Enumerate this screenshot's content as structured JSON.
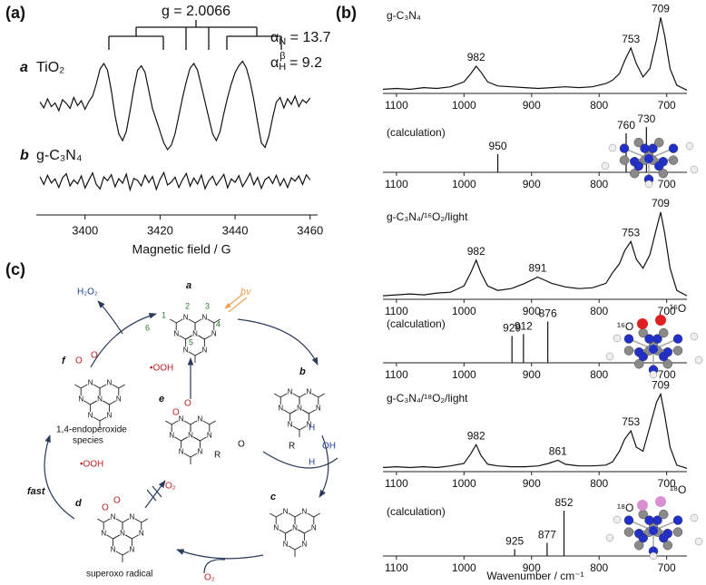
{
  "panel_labels": [
    "(a)",
    "(b)",
    "(c)"
  ],
  "chart_data": [
    {
      "type": "line",
      "annotations": {
        "g": "g = 2.0066",
        "splitting_n": {
          "symbol": "α",
          "sub": "N",
          "text": " = 13.7"
        },
        "splitting_h": {
          "symbol": "α",
          "sub": "H",
          "sup": "β",
          "text": " = 9.2"
        }
      },
      "x": [
        3388,
        3389,
        3390,
        3391,
        3392,
        3393,
        3394,
        3395,
        3396,
        3397,
        3398,
        3399,
        3400,
        3401,
        3402,
        3403,
        3404,
        3405,
        3406,
        3407,
        3408,
        3409,
        3410,
        3411,
        3412,
        3413,
        3414,
        3415,
        3416,
        3417,
        3418,
        3419,
        3420,
        3421,
        3422,
        3423,
        3424,
        3425,
        3426,
        3427,
        3428,
        3429,
        3430,
        3431,
        3432,
        3433,
        3434,
        3435,
        3436,
        3437,
        3438,
        3439,
        3440,
        3441,
        3442,
        3443,
        3444,
        3445,
        3446,
        3447,
        3448,
        3449,
        3450,
        3451,
        3452,
        3453,
        3454,
        3455,
        3456,
        3457,
        3458,
        3459,
        3460
      ],
      "series": [
        {
          "name": "TiO₂",
          "marker": "a",
          "color": "#111111",
          "values": [
            0.5,
            -0.8,
            1.2,
            -0.5,
            0.3,
            -1.4,
            1.0,
            0.2,
            -0.9,
            1.5,
            -0.3,
            0.8,
            -1.1,
            0.6,
            1.8,
            4.5,
            7.8,
            9.0,
            7.5,
            3.0,
            -2.5,
            -6.5,
            -8.0,
            -6.0,
            -1.5,
            3.5,
            7.5,
            8.5,
            7.0,
            3.0,
            -1.0,
            -3.5,
            -6.0,
            -8.5,
            -10.0,
            -9.0,
            -6.5,
            -2.5,
            1.5,
            5.0,
            8.0,
            9.0,
            7.5,
            4.0,
            0.5,
            -3.0,
            -6.5,
            -8.0,
            -6.0,
            -2.0,
            1.5,
            4.5,
            7.0,
            8.5,
            9.5,
            8.0,
            5.0,
            1.0,
            -4.0,
            -8.5,
            -9.5,
            -7.0,
            -3.0,
            0.5,
            1.5,
            -0.8,
            1.2,
            0.0,
            1.8,
            -0.5,
            1.0,
            0.3,
            1.4
          ]
        },
        {
          "name": "g-C₃N₄",
          "marker": "b",
          "color": "#111111",
          "values": [
            1.5,
            -1.0,
            2.0,
            -0.5,
            0.8,
            -2.0,
            1.2,
            2.5,
            -1.5,
            0.5,
            -0.8,
            1.8,
            -2.2,
            0.4,
            2.8,
            -1.0,
            -2.5,
            1.5,
            0.2,
            2.2,
            -1.8,
            0.9,
            -0.6,
            2.4,
            -2.8,
            1.0,
            0.3,
            -1.5,
            2.0,
            -0.4,
            1.6,
            -2.6,
            0.7,
            2.9,
            -1.2,
            -0.2,
            1.4,
            -2.0,
            0.6,
            2.6,
            -1.6,
            1.1,
            -0.9,
            2.1,
            -2.4,
            0.2,
            1.7,
            -1.3,
            0.5,
            2.3,
            -2.1,
            0.8,
            -0.3,
            1.9,
            -1.7,
            0.4,
            2.7,
            -1.1,
            1.3,
            -2.3,
            0.6,
            1.5,
            -0.7,
            2.0,
            -1.4,
            0.9,
            -2.0,
            1.2,
            0.1,
            1.8,
            -1.0,
            2.2,
            0.5
          ]
        }
      ],
      "xlim": [
        3387,
        3462
      ],
      "xticks": [
        3400,
        3420,
        3440,
        3460
      ],
      "ylim": [
        -12,
        12
      ],
      "xlabel": "Magnetic field / G"
    },
    {
      "type": "line",
      "title": "g-C₃N₄",
      "color": "#111111",
      "x": [
        1120,
        1100,
        1080,
        1060,
        1040,
        1020,
        1000,
        990,
        982,
        975,
        965,
        950,
        930,
        910,
        890,
        870,
        850,
        830,
        810,
        790,
        780,
        770,
        762,
        753,
        745,
        735,
        725,
        715,
        709,
        703,
        695,
        685,
        670
      ],
      "values": [
        5,
        6,
        5,
        7,
        6,
        8,
        14,
        24,
        33,
        26,
        14,
        9,
        8,
        7,
        6,
        7,
        8,
        7,
        8,
        12,
        16,
        24,
        40,
        55,
        36,
        20,
        30,
        65,
        92,
        70,
        30,
        10,
        4
      ],
      "peaks": [
        982,
        753,
        709
      ],
      "xlim": [
        1120,
        670
      ],
      "xticks": [
        1100,
        1000,
        900,
        800,
        700
      ],
      "ylim": [
        0,
        100
      ]
    },
    {
      "type": "stick",
      "title": "(calculation)",
      "color": "#111111",
      "x": [
        950,
        760,
        730
      ],
      "values": [
        40,
        86,
        100
      ],
      "xlim": [
        1120,
        670
      ],
      "xticks": [
        1100,
        1000,
        900,
        800,
        700
      ],
      "ylim": [
        0,
        110
      ]
    },
    {
      "type": "line",
      "title": "g-C₃N₄/¹⁶O₂/light",
      "color": "#111111",
      "x": [
        1120,
        1100,
        1080,
        1060,
        1040,
        1020,
        1000,
        990,
        982,
        975,
        965,
        950,
        930,
        910,
        891,
        870,
        850,
        830,
        810,
        790,
        780,
        770,
        762,
        753,
        745,
        735,
        725,
        715,
        709,
        703,
        695,
        685,
        670
      ],
      "values": [
        4,
        5,
        6,
        5,
        7,
        8,
        15,
        30,
        44,
        30,
        15,
        10,
        12,
        18,
        25,
        18,
        14,
        12,
        13,
        18,
        30,
        40,
        55,
        65,
        45,
        35,
        50,
        80,
        98,
        75,
        35,
        10,
        4
      ],
      "peaks": [
        982,
        891,
        753,
        709
      ],
      "xlim": [
        1120,
        670
      ],
      "xticks": [
        1100,
        1000,
        900,
        800,
        700
      ],
      "ylim": [
        0,
        100
      ]
    },
    {
      "type": "stick",
      "title": "(calculation)",
      "color": "#111111",
      "x": [
        929,
        912,
        876
      ],
      "values": [
        65,
        70,
        100
      ],
      "xlim": [
        1120,
        670
      ],
      "xticks": [
        1100,
        1000,
        900,
        800,
        700
      ],
      "ylim": [
        0,
        110
      ]
    },
    {
      "type": "line",
      "title": "g-C₃N₄/¹⁸O₂/light",
      "color": "#111111",
      "x": [
        1120,
        1100,
        1080,
        1060,
        1040,
        1020,
        1000,
        990,
        982,
        975,
        965,
        950,
        930,
        910,
        890,
        875,
        861,
        850,
        830,
        810,
        790,
        780,
        770,
        762,
        753,
        745,
        735,
        725,
        715,
        709,
        703,
        695,
        685,
        670
      ],
      "values": [
        5,
        6,
        5,
        6,
        5,
        7,
        10,
        22,
        33,
        20,
        9,
        7,
        6,
        6,
        7,
        10,
        14,
        9,
        7,
        7,
        8,
        12,
        25,
        40,
        50,
        30,
        25,
        55,
        85,
        95,
        70,
        30,
        8,
        4
      ],
      "peaks": [
        982,
        861,
        753,
        709
      ],
      "xlim": [
        1120,
        670
      ],
      "xticks": [
        1100,
        1000,
        900,
        800,
        700
      ],
      "ylim": [
        0,
        100
      ]
    },
    {
      "type": "stick",
      "title": "(calculation)",
      "color": "#111111",
      "x": [
        925,
        877,
        852
      ],
      "values": [
        15,
        29,
        100
      ],
      "xlim": [
        1120,
        670
      ],
      "xticks": [
        1100,
        1000,
        900,
        800,
        700
      ],
      "ylim": [
        0,
        110
      ],
      "xlabel": "Wavenumber / cm⁻¹"
    }
  ],
  "isotopes": {
    "o16": "¹⁶O",
    "o18": "¹⁸O"
  },
  "scheme": {
    "compounds": [
      "a",
      "b",
      "c",
      "d",
      "e",
      "f"
    ],
    "hv": "hv",
    "numbering": [
      "1",
      "2",
      "3",
      "4",
      "5",
      "6"
    ],
    "h2o2": "H₂O₂",
    "ooh": "•OOH",
    "o2": "O₂",
    "oxygen": "O",
    "hydrogen": "H",
    "atom": "N",
    "alkyl": "R",
    "hydroxyl": "OH",
    "endoperoxide": [
      "1,4-endoperoxide",
      "species"
    ],
    "fast": "fast",
    "superoxo": "superoxo radical"
  }
}
